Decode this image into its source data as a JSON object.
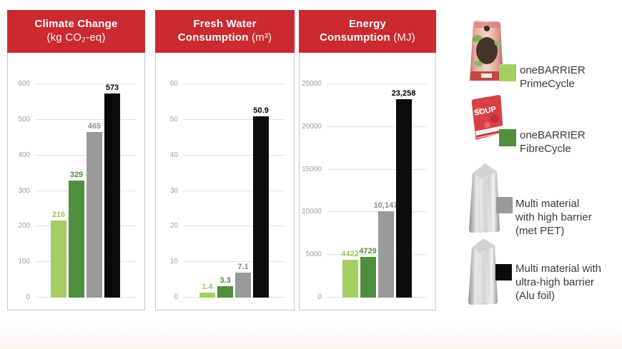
{
  "page": {
    "background": "#ffffff",
    "header_color": "#cb2a30"
  },
  "chart_headers": [
    {
      "line1": "Climate Change",
      "line2_bold": "",
      "line2_unit": "(kg CO₂-eq)"
    },
    {
      "line1": "Fresh Water",
      "line2_bold": "Consumption",
      "line2_unit": " (m³)"
    },
    {
      "line1": "Energy",
      "line2_bold": "Consumption",
      "line2_unit": " (MJ)"
    }
  ],
  "chart_data": [
    {
      "type": "bar",
      "title": "Climate Change",
      "unit": "(kg CO₂-eq)",
      "categories": [
        "oneBARRIER PrimeCycle",
        "oneBARRIER FibreCycle",
        "Multi material with high barrier (met PET)",
        "Multi material with ultra-high barrier (Alu foil)"
      ],
      "values": [
        216,
        329,
        465,
        573
      ],
      "value_labels": [
        "216",
        "329",
        "465",
        "573"
      ],
      "bar_colors": [
        "#a3cf62",
        "#4f8f3e",
        "#9a9a9a",
        "#0b0b0b"
      ],
      "label_colors": [
        "#9cc75a",
        "#4f8f3e",
        "#8c8c8c",
        "#000000"
      ],
      "ylim": [
        0,
        600
      ],
      "yticks": [
        0,
        100,
        200,
        300,
        400,
        500,
        600
      ],
      "grid": true,
      "legend_position": "right"
    },
    {
      "type": "bar",
      "title": "Fresh Water Consumption",
      "unit": "(m³)",
      "categories": [
        "oneBARRIER PrimeCycle",
        "oneBARRIER FibreCycle",
        "Multi material with high barrier (met PET)",
        "Multi material with ultra-high barrier (Alu foil)"
      ],
      "values": [
        1.4,
        3.3,
        7.1,
        50.9
      ],
      "value_labels": [
        "1.4",
        "3.3",
        "7.1",
        "50.9"
      ],
      "bar_colors": [
        "#a3cf62",
        "#4f8f3e",
        "#9a9a9a",
        "#0b0b0b"
      ],
      "label_colors": [
        "#9cc75a",
        "#4f8f3e",
        "#8c8c8c",
        "#000000"
      ],
      "ylim": [
        0,
        60
      ],
      "yticks": [
        0,
        10,
        20,
        30,
        40,
        50,
        60
      ],
      "grid": true,
      "legend_position": "right"
    },
    {
      "type": "bar",
      "title": "Energy Consumption",
      "unit": "(MJ)",
      "categories": [
        "oneBARRIER PrimeCycle",
        "oneBARRIER FibreCycle",
        "Multi material with high barrier (met PET)",
        "Multi material with ultra-high barrier (Alu foil)"
      ],
      "values": [
        4422,
        4729,
        10147,
        23258
      ],
      "value_labels": [
        "4422",
        "4729",
        "10,147",
        "23,258"
      ],
      "bar_colors": [
        "#a3cf62",
        "#4f8f3e",
        "#9a9a9a",
        "#0b0b0b"
      ],
      "label_colors": [
        "#9cc75a",
        "#4f8f3e",
        "#8c8c8c",
        "#000000"
      ],
      "ylim": [
        0,
        25000
      ],
      "yticks": [
        0,
        5000,
        10000,
        15000,
        20000,
        25000
      ],
      "grid": true,
      "legend_position": "right"
    }
  ],
  "legend": {
    "items": [
      {
        "swatch_color": "#a3cf62",
        "lines": [
          "oneBARRIER",
          "PrimeCycle"
        ],
        "package": "pet-food-pouch"
      },
      {
        "swatch_color": "#4f8f3e",
        "lines": [
          "oneBARRIER",
          "FibreCycle"
        ],
        "package": "soup-pouch",
        "package_text": "SOUP"
      },
      {
        "swatch_color": "#9a9a9a",
        "lines": [
          "Multi material",
          "with high barrier",
          "(met PET)"
        ],
        "package": "silver-pouch"
      },
      {
        "swatch_color": "#0b0b0b",
        "lines": [
          "Multi material with",
          "ultra-high barrier",
          "(Alu foil)"
        ],
        "package": "silver-pouch"
      }
    ]
  }
}
